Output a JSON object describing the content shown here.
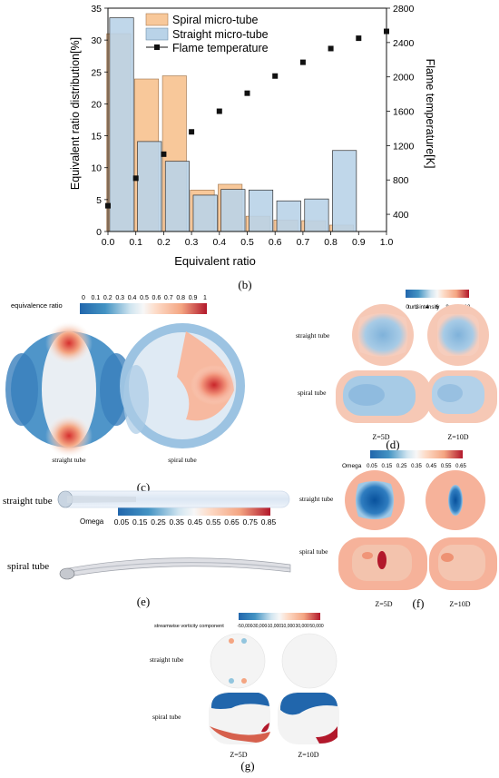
{
  "panel_b": {
    "label": "(b)",
    "chart_data": {
      "type": "bar",
      "xlabel": "Equivalent ratio",
      "ylabel_left": "Equivalent ratio distribution[%]",
      "ylabel_right": "Flame temperature[K]",
      "xlim": [
        0.0,
        1.0
      ],
      "ylim_left": [
        0,
        35
      ],
      "ylim_right": [
        200,
        2800
      ],
      "x_ticks": [
        "0.0",
        "0.1",
        "0.2",
        "0.3",
        "0.4",
        "0.5",
        "0.6",
        "0.7",
        "0.8",
        "0.9",
        "1.0"
      ],
      "y_left_ticks": [
        "0",
        "5",
        "10",
        "15",
        "20",
        "25",
        "30",
        "35"
      ],
      "y_right_ticks": [
        "400",
        "800",
        "1200",
        "1600",
        "2000",
        "2400",
        "2800"
      ],
      "legend": [
        "Spiral micro-tube",
        "Straight micro-tube",
        "Flame temperature"
      ],
      "legend_position": "top-left",
      "colors": {
        "spiral": "#f8c89a",
        "straight": "#b9d3e8",
        "flame": "#111111"
      },
      "series": [
        {
          "name": "Spiral micro-tube",
          "x": [
            0.0,
            0.1,
            0.2,
            0.3,
            0.4,
            0.5,
            0.6,
            0.7,
            0.8
          ],
          "values": [
            31.0,
            23.9,
            24.4,
            6.5,
            7.4,
            2.4,
            1.8,
            1.7,
            1.0
          ]
        },
        {
          "name": "Straight micro-tube",
          "x": [
            0.0,
            0.1,
            0.2,
            0.3,
            0.4,
            0.5,
            0.6,
            0.7,
            0.8
          ],
          "values": [
            33.5,
            14.1,
            11.0,
            5.7,
            6.6,
            6.5,
            4.8,
            5.1,
            12.7
          ]
        },
        {
          "name": "Flame temperature",
          "x": [
            0.0,
            0.1,
            0.2,
            0.3,
            0.4,
            0.5,
            0.6,
            0.7,
            0.8,
            0.9,
            1.0
          ],
          "values": [
            500,
            820,
            1100,
            1360,
            1600,
            1810,
            2010,
            2170,
            2330,
            2450,
            2530
          ]
        }
      ]
    }
  },
  "panel_c": {
    "label": "(c)",
    "colorbar_title": "equivalence ratio",
    "ticks": [
      "0",
      "0.1",
      "0.2",
      "0.3",
      "0.4",
      "0.5",
      "0.6",
      "0.7",
      "0.8",
      "0.9",
      "1"
    ],
    "captions": [
      "straight tube",
      "spiral tube"
    ]
  },
  "panel_d": {
    "label": "(d)",
    "colorbar_title": "turb-intensity",
    "ticks": [
      "0",
      "2",
      "4",
      "6",
      "8",
      "10",
      "12"
    ],
    "row_labels": [
      "straight tube",
      "spiral tube"
    ],
    "col_labels": [
      "Z=5D",
      "Z=10D"
    ]
  },
  "panel_e": {
    "label": "(e)",
    "colorbar_title": "Omega",
    "ticks": [
      "0.05",
      "0.15",
      "0.25",
      "0.35",
      "0.45",
      "0.55",
      "0.65",
      "0.75",
      "0.85"
    ],
    "row_labels": [
      "straight tube",
      "spiral tube"
    ]
  },
  "panel_f": {
    "label": "(f)",
    "colorbar_title": "Omega",
    "ticks": [
      "0.05",
      "0.15",
      "0.25",
      "0.35",
      "0.45",
      "0.55",
      "0.65"
    ],
    "row_labels": [
      "straight tube",
      "spiral tube"
    ],
    "col_labels": [
      "Z=5D",
      "Z=10D"
    ]
  },
  "panel_g": {
    "label": "(g)",
    "colorbar_title": "streamwise vorticity component",
    "ticks": [
      "-50,000",
      "-30,000",
      "-10,000",
      "10,000",
      "30,000",
      "50,000"
    ],
    "row_labels": [
      "straight tube",
      "spiral tube"
    ],
    "col_labels": [
      "Z=5D",
      "Z=10D"
    ]
  }
}
